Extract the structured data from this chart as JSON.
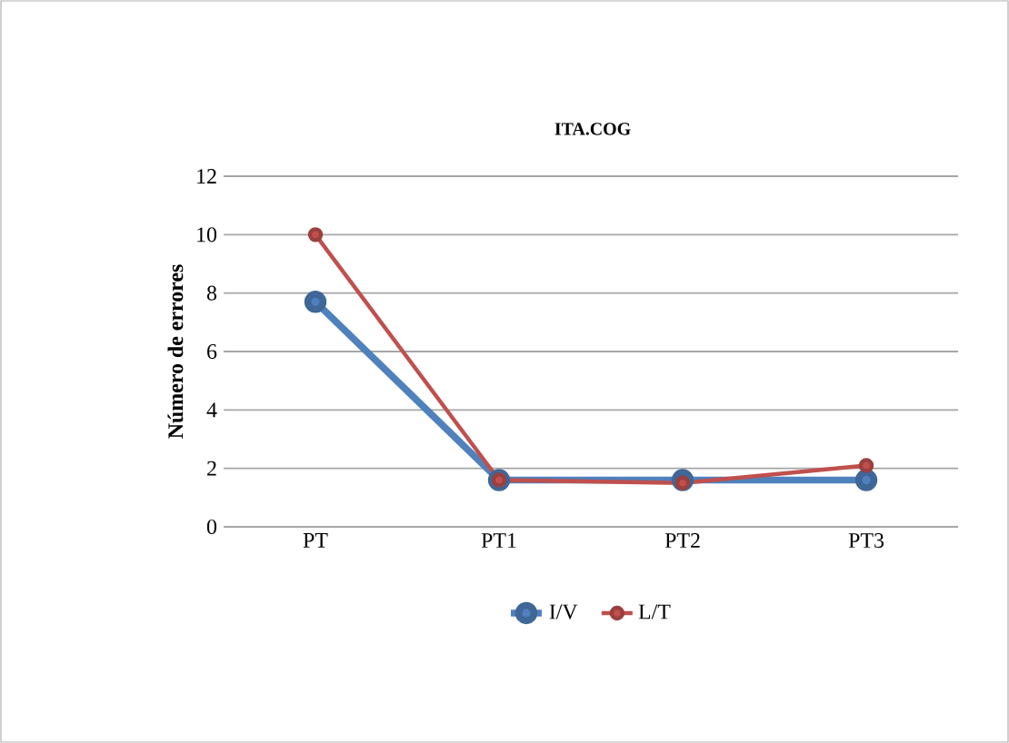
{
  "chart_data": {
    "type": "line",
    "title": "ITA.COG",
    "ylabel": "Número de errores",
    "categories": [
      "PT",
      "PT1",
      "PT2",
      "PT3"
    ],
    "series": [
      {
        "name": "I/V",
        "color": "#4f81bd",
        "values": [
          7.7,
          1.6,
          1.6,
          1.6
        ]
      },
      {
        "name": "L/T",
        "color": "#c0504d",
        "values": [
          10,
          1.6,
          1.5,
          2.1
        ]
      }
    ],
    "ylim": [
      0,
      12
    ],
    "yticks": [
      0,
      2,
      4,
      6,
      8,
      10,
      12
    ],
    "grid": "y",
    "legend": "bottom",
    "marker": "circle",
    "line_style": "solid"
  }
}
